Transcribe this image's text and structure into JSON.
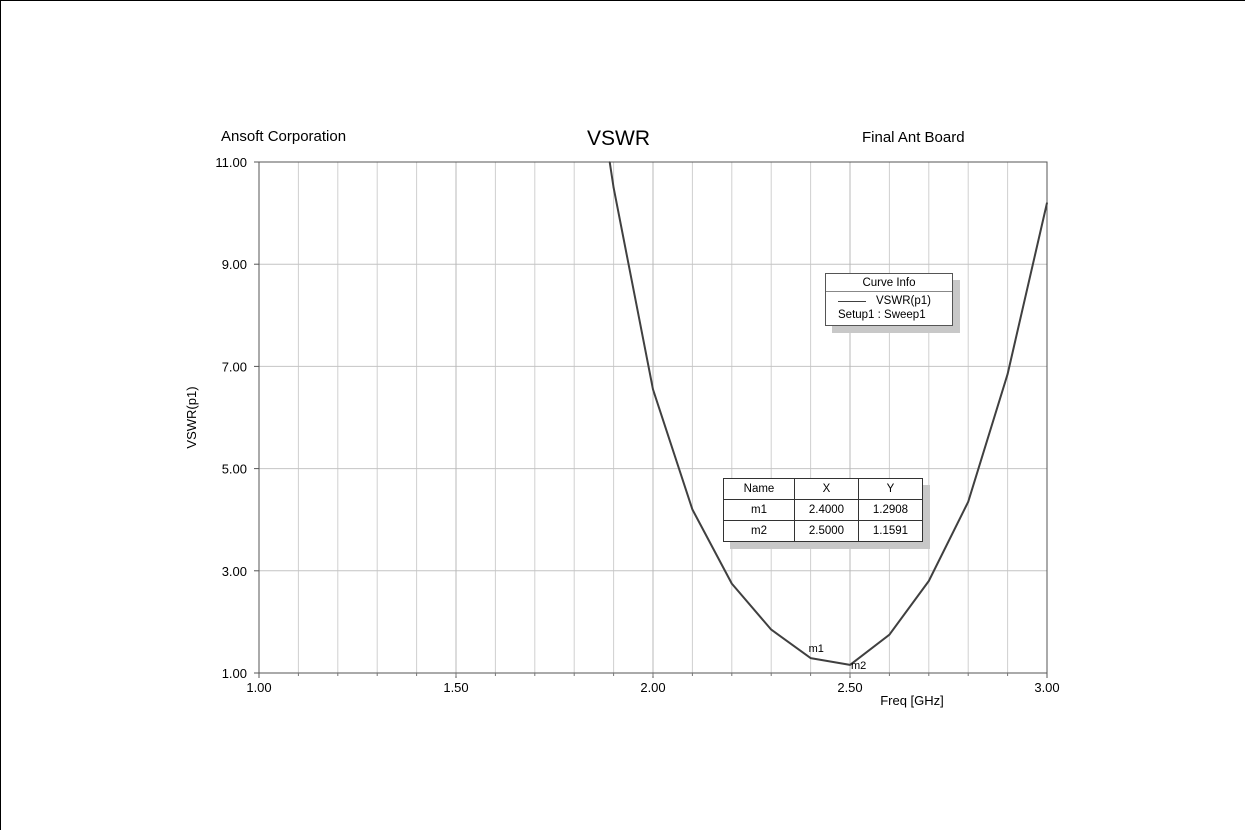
{
  "header": {
    "company": "Ansoft Corporation",
    "title": "VSWR",
    "project": "Final Ant Board"
  },
  "chart_data": {
    "type": "line",
    "title": "VSWR",
    "xlabel": "Freq [GHz]",
    "ylabel": "VSWR(p1)",
    "xlim": [
      1.0,
      3.0
    ],
    "ylim": [
      1.0,
      11.0
    ],
    "x_ticks": [
      "1.00",
      "1.50",
      "2.00",
      "2.50",
      "3.00"
    ],
    "y_ticks": [
      "1.00",
      "3.00",
      "5.00",
      "7.00",
      "9.00",
      "11.00"
    ],
    "grid": true,
    "series": [
      {
        "name": "VSWR(p1)",
        "color": "#404040",
        "x": [
          1.89,
          1.9,
          2.0,
          2.1,
          2.2,
          2.3,
          2.4,
          2.5,
          2.6,
          2.7,
          2.8,
          2.9,
          3.0
        ],
        "y": [
          11.0,
          10.5,
          6.55,
          4.2,
          2.75,
          1.85,
          1.2908,
          1.1591,
          1.75,
          2.8,
          4.35,
          6.85,
          10.2
        ]
      }
    ],
    "legend": {
      "header": "Curve Info",
      "entry": "VSWR(p1)",
      "sub": "Setup1 : Sweep1",
      "position": "top-right"
    },
    "markers": [
      {
        "name": "m1",
        "x": 2.4,
        "y": 1.2908
      },
      {
        "name": "m2",
        "x": 2.5,
        "y": 1.1591
      }
    ],
    "marker_table": {
      "headers": [
        "Name",
        "X",
        "Y"
      ],
      "rows": [
        [
          "m1",
          "2.4000",
          "1.2908"
        ],
        [
          "m2",
          "2.5000",
          "1.1591"
        ]
      ]
    }
  }
}
